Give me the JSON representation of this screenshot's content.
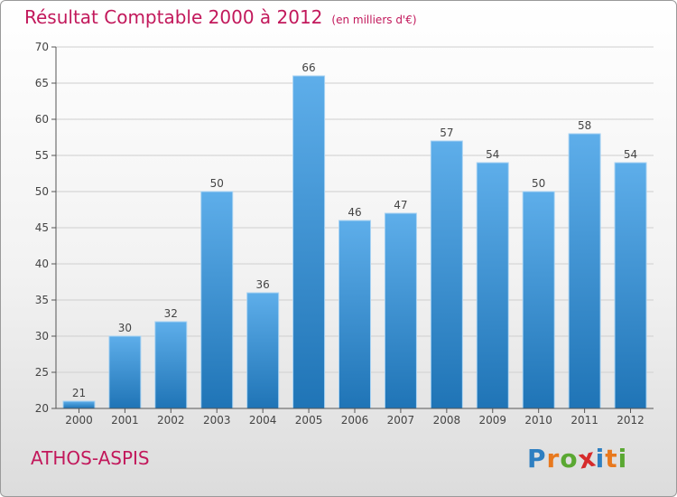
{
  "header": {
    "title": "Résultat Comptable 2000 à 2012",
    "subtitle": "(en milliers d'€)"
  },
  "footer": {
    "place_name": "ATHOS-ASPIS",
    "logo_letters": [
      "P",
      "r",
      "o",
      "x",
      "i",
      "t",
      "i"
    ],
    "logo_colors": [
      "#2e7fc1",
      "#e8791e",
      "#5aa832",
      "#d62b2b",
      "#2e7fc1",
      "#e8791e",
      "#5aa832"
    ]
  },
  "colors": {
    "bar_top": "#5eaeea",
    "bar_bottom": "#1f74b6",
    "accent": "#c2185b"
  },
  "chart_data": {
    "type": "bar",
    "title": "Résultat Comptable 2000 à 2012",
    "subtitle": "(en milliers d'€)",
    "categories": [
      "2000",
      "2001",
      "2002",
      "2003",
      "2004",
      "2005",
      "2006",
      "2007",
      "2008",
      "2009",
      "2010",
      "2011",
      "2012"
    ],
    "values": [
      21,
      30,
      32,
      50,
      36,
      66,
      46,
      47,
      57,
      54,
      50,
      58,
      54
    ],
    "ylim": [
      20,
      70
    ],
    "yticks": [
      20,
      25,
      30,
      35,
      40,
      45,
      50,
      55,
      60,
      65,
      70
    ],
    "xlabel": "",
    "ylabel": "",
    "grid": true
  }
}
